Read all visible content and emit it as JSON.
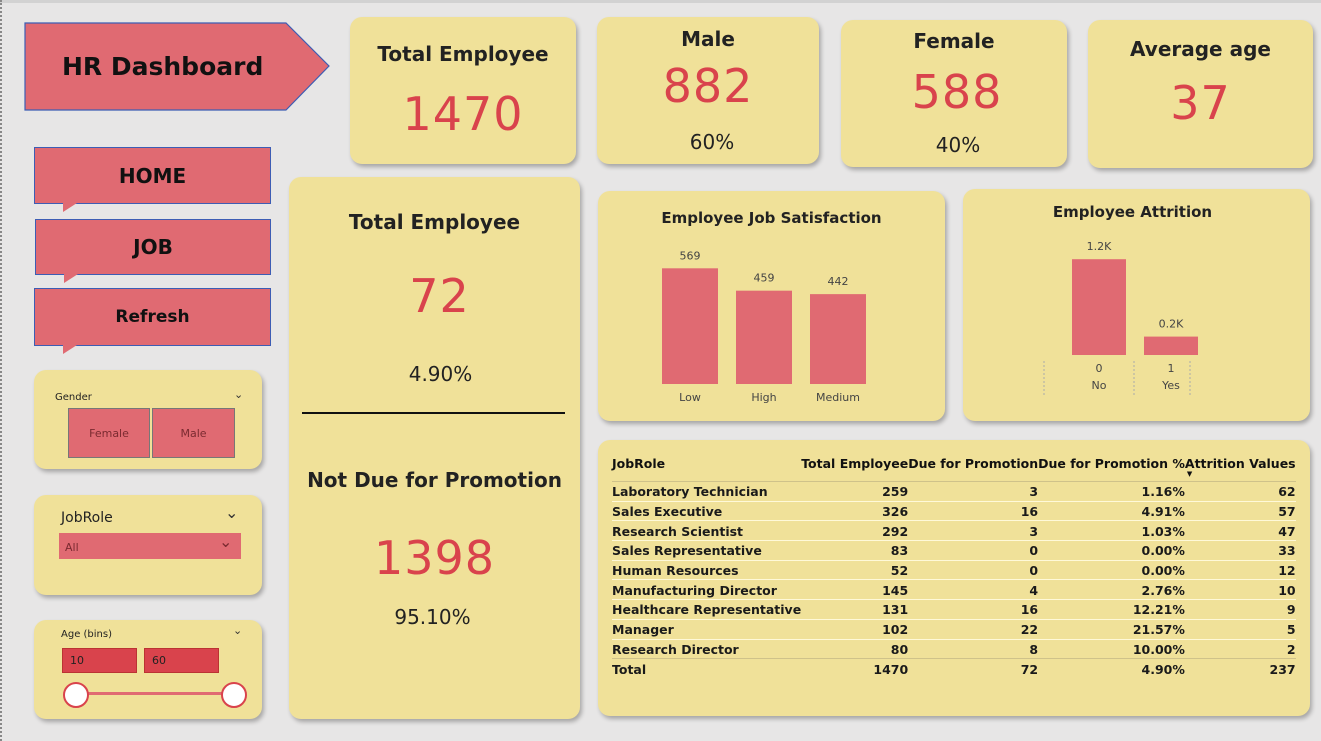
{
  "header": {
    "title": "HR Dashboard"
  },
  "nav": {
    "home": "HOME",
    "job": "JOB",
    "refresh": "Refresh"
  },
  "kpis": {
    "total_employee": {
      "title": "Total Employee",
      "value": "1470"
    },
    "male": {
      "title": "Male",
      "value": "882",
      "pct": "60%"
    },
    "female": {
      "title": "Female",
      "value": "588",
      "pct": "40%"
    },
    "average_age": {
      "title": "Average age",
      "value": "37"
    }
  },
  "promotion": {
    "due_title": "Total Employee",
    "due_value": "72",
    "due_pct": "4.90%",
    "not_due_title": "Not Due for Promotion",
    "not_due_value": "1398",
    "not_due_pct": "95.10%"
  },
  "slicers": {
    "gender": {
      "label": "Gender",
      "options": [
        "Female",
        "Male"
      ]
    },
    "jobrole": {
      "label": "JobRole",
      "selected": "All"
    },
    "age": {
      "label": "Age (bins)",
      "min": "10",
      "max": "60"
    }
  },
  "colors": {
    "card": "#f0e199",
    "accent": "#d9434c",
    "bar": "#e06a72",
    "nav_border": "#3d5db4"
  },
  "chart_data": [
    {
      "type": "bar",
      "title": "Employee Job Satisfaction",
      "categories": [
        "Low",
        "High",
        "Medium"
      ],
      "values": [
        569,
        459,
        442
      ],
      "data_labels": [
        "569",
        "459",
        "442"
      ],
      "ylim": [
        0,
        600
      ]
    },
    {
      "type": "bar",
      "title": "Employee Attrition",
      "categories": [
        "0\nNo",
        "1\nYes"
      ],
      "category_codes": [
        "0",
        "1"
      ],
      "category_names": [
        "No",
        "Yes"
      ],
      "values": [
        1233,
        237
      ],
      "data_labels": [
        "1.2K",
        "0.2K"
      ],
      "ylim": [
        0,
        1300
      ]
    }
  ],
  "table": {
    "columns": [
      "JobRole",
      "Total Employee",
      "Due for Promotion",
      "Due for Promotion %",
      "Attrition Values"
    ],
    "rows": [
      [
        "Laboratory Technician",
        "259",
        "3",
        "1.16%",
        "62"
      ],
      [
        "Sales Executive",
        "326",
        "16",
        "4.91%",
        "57"
      ],
      [
        "Research Scientist",
        "292",
        "3",
        "1.03%",
        "47"
      ],
      [
        "Sales Representative",
        "83",
        "0",
        "0.00%",
        "33"
      ],
      [
        "Human Resources",
        "52",
        "0",
        "0.00%",
        "12"
      ],
      [
        "Manufacturing Director",
        "145",
        "4",
        "2.76%",
        "10"
      ],
      [
        "Healthcare Representative",
        "131",
        "16",
        "12.21%",
        "9"
      ],
      [
        "Manager",
        "102",
        "22",
        "21.57%",
        "5"
      ],
      [
        "Research Director",
        "80",
        "8",
        "10.00%",
        "2"
      ]
    ],
    "total": [
      "Total",
      "1470",
      "72",
      "4.90%",
      "237"
    ]
  }
}
